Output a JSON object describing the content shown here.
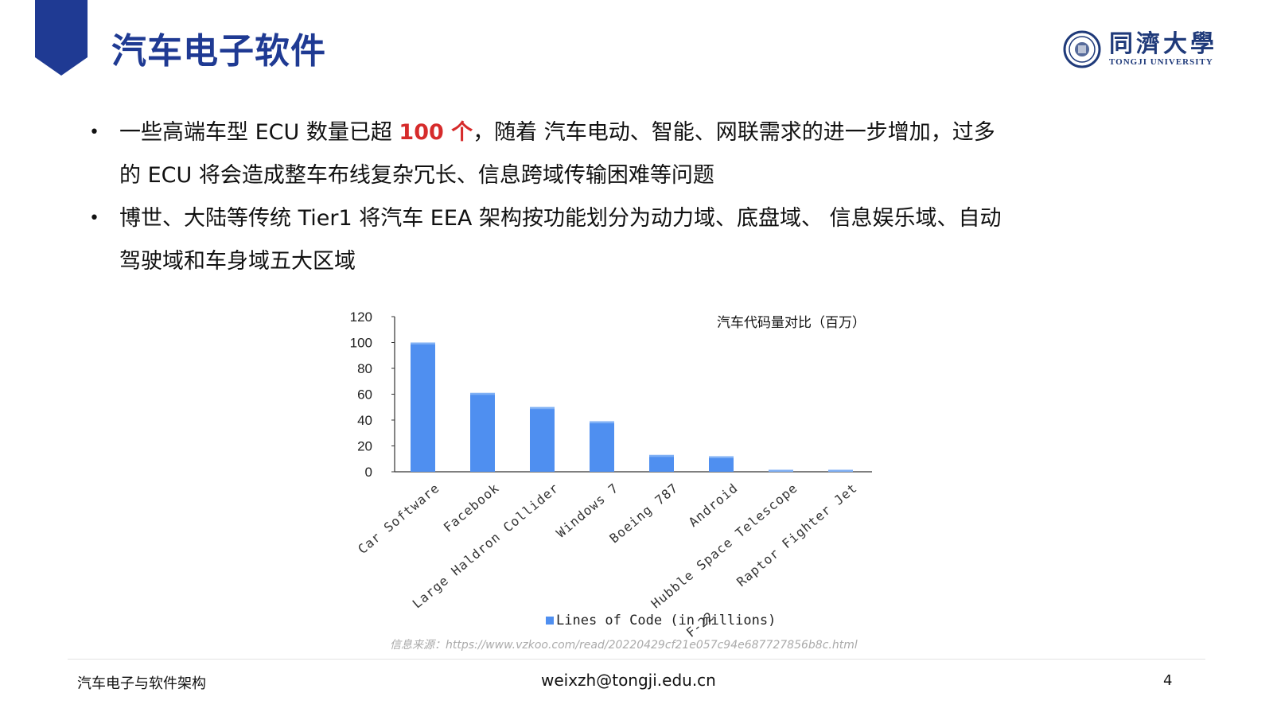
{
  "header": {
    "title": "汽车电子软件",
    "logo_cn": "同濟大學",
    "logo_en": "TONGJI UNIVERSITY"
  },
  "bullets": [
    {
      "before": "一些高端车型 ECU 数量已超 ",
      "highlight": "100 个",
      "after": "，随着 汽车电动、智能、网联需求的进一步增加，过多",
      "line2": "的 ECU 将会造成整车布线复杂冗长、信息跨域传输困难等问题"
    },
    {
      "before": "博世、大陆等传统 Tier1 将汽车 EEA 架构按功能划分为动力域、底盘域、 信息娱乐域、自动",
      "line2": "驾驶域和车身域五大区域"
    }
  ],
  "chart_data": {
    "type": "bar",
    "title": "汽车代码量对比（百万）",
    "categories": [
      "Car Software",
      "Facebook",
      "Large Haldron Collider",
      "Windows 7",
      "Boeing 787",
      "Android",
      "Hubble Space Telescope",
      "Raptor Fighter Jet"
    ],
    "series": [
      {
        "name": "Lines of Code (in millions)",
        "values": [
          100,
          61,
          50,
          39,
          13,
          12,
          1.5,
          1.5
        ]
      }
    ],
    "yticks": [
      0,
      20,
      40,
      60,
      80,
      100,
      120
    ],
    "ylim": [
      0,
      120
    ],
    "legend_position": "bottom",
    "colors": {
      "bar": "#4f8ff0",
      "bar_top": "#7fb0f5"
    },
    "annotation": "F-22"
  },
  "source": "信息来源：https://www.vzkoo.com/read/20220429cf21e057c94e687727856b8c.html",
  "footer": {
    "course": "汽车电子与软件架构",
    "email": "weixzh@tongji.edu.cn",
    "page": "4"
  }
}
